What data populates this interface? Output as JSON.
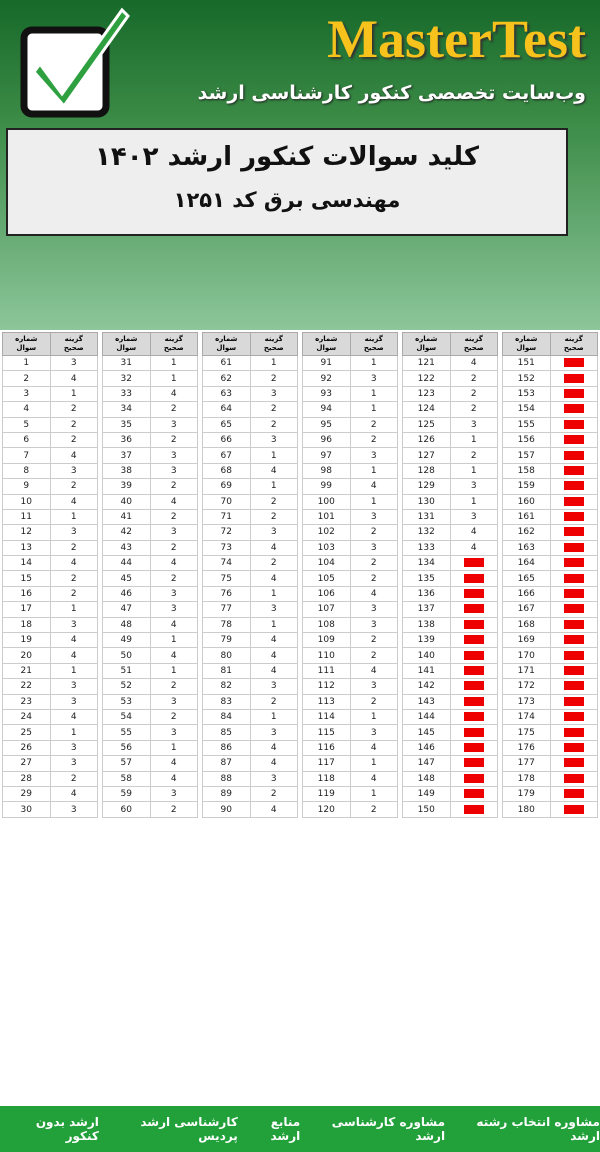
{
  "header": {
    "brand": "MasterTest",
    "tagline": "وب‌سایت تخصصی کنکور کارشناسی ارشد",
    "title": "کلید سوالات کنکور ارشد ۱۴۰۲",
    "subtitle": "مهندسی برق کد ۱۲۵۱"
  },
  "table": {
    "number_header": [
      "شماره",
      "سوال"
    ],
    "answer_header": [
      "گزینه",
      "صحیح"
    ],
    "blocks": [
      {
        "rows": [
          [
            1,
            3
          ],
          [
            2,
            4
          ],
          [
            3,
            1
          ],
          [
            4,
            2
          ],
          [
            5,
            2
          ],
          [
            6,
            2
          ],
          [
            7,
            4
          ],
          [
            8,
            3
          ],
          [
            9,
            2
          ],
          [
            10,
            4
          ],
          [
            11,
            1
          ],
          [
            12,
            3
          ],
          [
            13,
            2
          ],
          [
            14,
            4
          ],
          [
            15,
            2
          ],
          [
            16,
            2
          ],
          [
            17,
            1
          ],
          [
            18,
            3
          ],
          [
            19,
            4
          ],
          [
            20,
            4
          ],
          [
            21,
            1
          ],
          [
            22,
            3
          ],
          [
            23,
            3
          ],
          [
            24,
            4
          ],
          [
            25,
            1
          ],
          [
            26,
            3
          ],
          [
            27,
            3
          ],
          [
            28,
            2
          ],
          [
            29,
            4
          ],
          [
            30,
            3
          ]
        ]
      },
      {
        "rows": [
          [
            31,
            1
          ],
          [
            32,
            1
          ],
          [
            33,
            4
          ],
          [
            34,
            2
          ],
          [
            35,
            3
          ],
          [
            36,
            2
          ],
          [
            37,
            3
          ],
          [
            38,
            3
          ],
          [
            39,
            2
          ],
          [
            40,
            4
          ],
          [
            41,
            2
          ],
          [
            42,
            3
          ],
          [
            43,
            2
          ],
          [
            44,
            4
          ],
          [
            45,
            2
          ],
          [
            46,
            3
          ],
          [
            47,
            3
          ],
          [
            48,
            4
          ],
          [
            49,
            1
          ],
          [
            50,
            4
          ],
          [
            51,
            1
          ],
          [
            52,
            2
          ],
          [
            53,
            3
          ],
          [
            54,
            2
          ],
          [
            55,
            3
          ],
          [
            56,
            1
          ],
          [
            57,
            4
          ],
          [
            58,
            4
          ],
          [
            59,
            3
          ],
          [
            60,
            2
          ]
        ]
      },
      {
        "rows": [
          [
            61,
            1
          ],
          [
            62,
            2
          ],
          [
            63,
            3
          ],
          [
            64,
            2
          ],
          [
            65,
            2
          ],
          [
            66,
            3
          ],
          [
            67,
            1
          ],
          [
            68,
            4
          ],
          [
            69,
            1
          ],
          [
            70,
            2
          ],
          [
            71,
            2
          ],
          [
            72,
            3
          ],
          [
            73,
            4
          ],
          [
            74,
            2
          ],
          [
            75,
            4
          ],
          [
            76,
            1
          ],
          [
            77,
            3
          ],
          [
            78,
            1
          ],
          [
            79,
            4
          ],
          [
            80,
            4
          ],
          [
            81,
            4
          ],
          [
            82,
            3
          ],
          [
            83,
            2
          ],
          [
            84,
            1
          ],
          [
            85,
            3
          ],
          [
            86,
            4
          ],
          [
            87,
            4
          ],
          [
            88,
            3
          ],
          [
            89,
            2
          ],
          [
            90,
            4
          ]
        ]
      },
      {
        "rows": [
          [
            91,
            1
          ],
          [
            92,
            3
          ],
          [
            93,
            1
          ],
          [
            94,
            1
          ],
          [
            95,
            2
          ],
          [
            96,
            2
          ],
          [
            97,
            3
          ],
          [
            98,
            1
          ],
          [
            99,
            4
          ],
          [
            100,
            1
          ],
          [
            101,
            3
          ],
          [
            102,
            2
          ],
          [
            103,
            3
          ],
          [
            104,
            2
          ],
          [
            105,
            2
          ],
          [
            106,
            4
          ],
          [
            107,
            3
          ],
          [
            108,
            3
          ],
          [
            109,
            2
          ],
          [
            110,
            2
          ],
          [
            111,
            4
          ],
          [
            112,
            3
          ],
          [
            113,
            2
          ],
          [
            114,
            1
          ],
          [
            115,
            3
          ],
          [
            116,
            4
          ],
          [
            117,
            1
          ],
          [
            118,
            4
          ],
          [
            119,
            1
          ],
          [
            120,
            2
          ]
        ]
      },
      {
        "rows": [
          [
            121,
            4
          ],
          [
            122,
            2
          ],
          [
            123,
            2
          ],
          [
            124,
            2
          ],
          [
            125,
            3
          ],
          [
            126,
            1
          ],
          [
            127,
            2
          ],
          [
            128,
            1
          ],
          [
            129,
            3
          ],
          [
            130,
            1
          ],
          [
            131,
            3
          ],
          [
            132,
            4
          ],
          [
            133,
            4
          ],
          [
            134,
            null
          ],
          [
            135,
            null
          ],
          [
            136,
            null
          ],
          [
            137,
            null
          ],
          [
            138,
            null
          ],
          [
            139,
            null
          ],
          [
            140,
            null
          ],
          [
            141,
            null
          ],
          [
            142,
            null
          ],
          [
            143,
            null
          ],
          [
            144,
            null
          ],
          [
            145,
            null
          ],
          [
            146,
            null
          ],
          [
            147,
            null
          ],
          [
            148,
            null
          ],
          [
            149,
            null
          ],
          [
            150,
            null
          ]
        ]
      },
      {
        "rows": [
          [
            151,
            null
          ],
          [
            152,
            null
          ],
          [
            153,
            null
          ],
          [
            154,
            null
          ],
          [
            155,
            null
          ],
          [
            156,
            null
          ],
          [
            157,
            null
          ],
          [
            158,
            null
          ],
          [
            159,
            null
          ],
          [
            160,
            null
          ],
          [
            161,
            null
          ],
          [
            162,
            null
          ],
          [
            163,
            null
          ],
          [
            164,
            null
          ],
          [
            165,
            null
          ],
          [
            166,
            null
          ],
          [
            167,
            null
          ],
          [
            168,
            null
          ],
          [
            169,
            null
          ],
          [
            170,
            null
          ],
          [
            171,
            null
          ],
          [
            172,
            null
          ],
          [
            173,
            null
          ],
          [
            174,
            null
          ],
          [
            175,
            null
          ],
          [
            176,
            null
          ],
          [
            177,
            null
          ],
          [
            178,
            null
          ],
          [
            179,
            null
          ],
          [
            180,
            null
          ]
        ]
      }
    ]
  },
  "footer": {
    "links": [
      "ارشد بدون کنکور",
      "کارشناسی ارشد پردیس",
      "منابع ارشد",
      "مشاوره کارشناسی ارشد",
      "مشاوره انتخاب رشته ارشد"
    ]
  }
}
